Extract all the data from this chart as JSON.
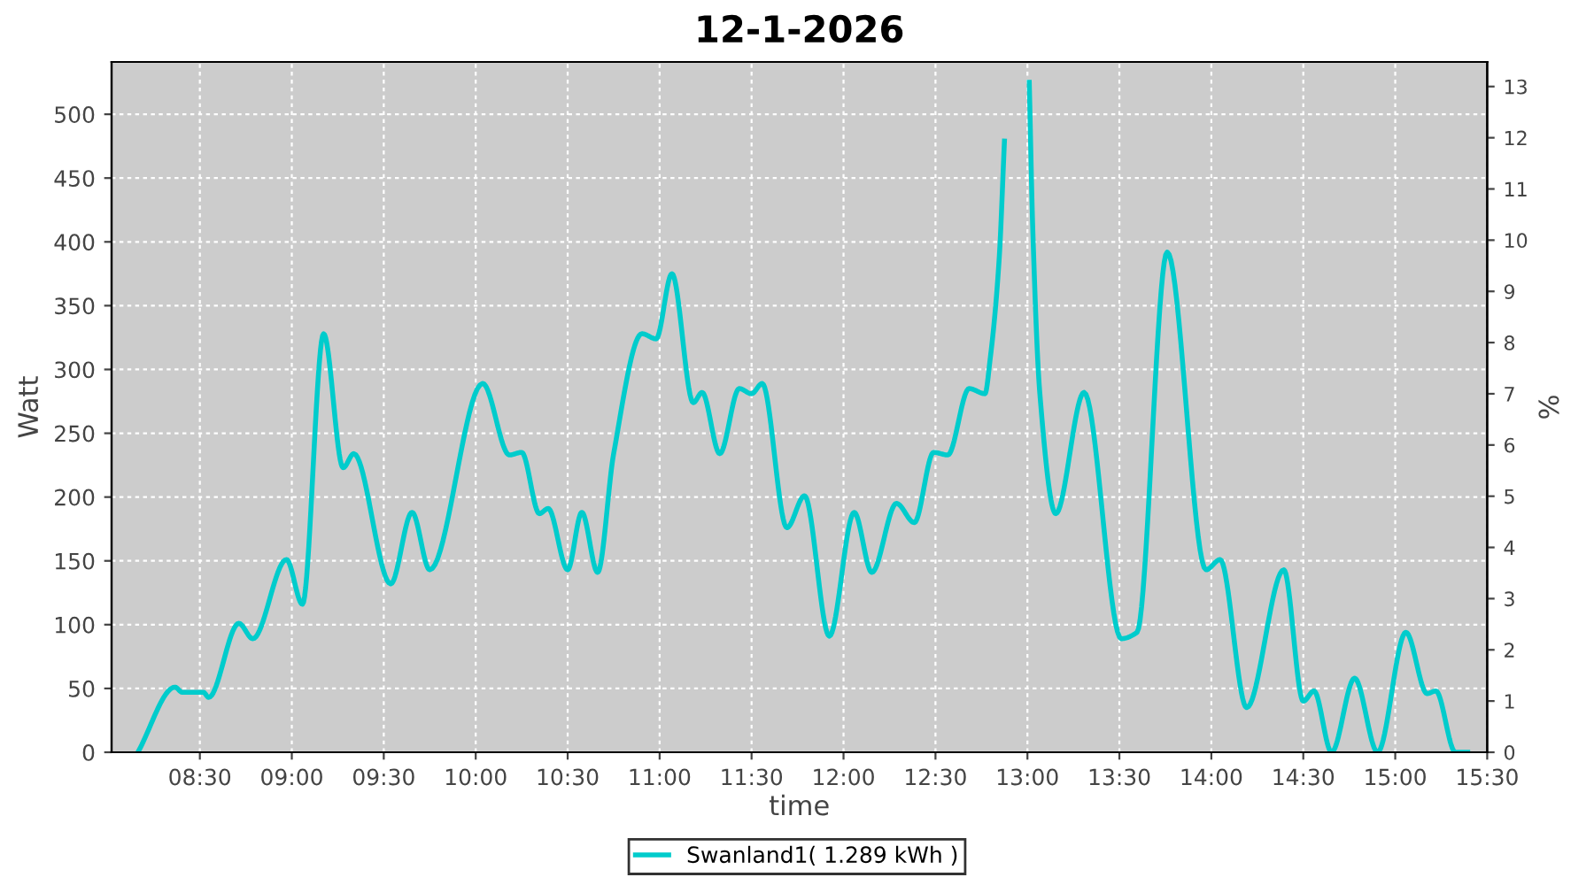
{
  "chart_data": {
    "type": "line",
    "title": "12-1-2026",
    "xlabel": "time",
    "ylabel": "Watt",
    "y2label": "%",
    "x": [
      8.163,
      8.365,
      8.404,
      8.519,
      8.548,
      8.712,
      8.788,
      8.971,
      9.058,
      9.173,
      9.279,
      9.337,
      9.538,
      9.654,
      9.75,
      10.038,
      10.183,
      10.25,
      10.346,
      10.394,
      10.5,
      10.577,
      10.663,
      10.75,
      10.904,
      10.981,
      11.067,
      11.183,
      11.231,
      11.327,
      11.433,
      11.5,
      11.558,
      11.692,
      11.788,
      11.923,
      12.058,
      12.154,
      12.288,
      12.385,
      12.49,
      12.567,
      12.683,
      12.769,
      12.798,
      12.846,
      12.875,
      12.894,
      12.971,
      13.01,
      13.029,
      13.067,
      13.154,
      13.308,
      13.51,
      13.596,
      13.76,
      13.971,
      14.048,
      14.192,
      14.394,
      14.5,
      14.558,
      14.654,
      14.779,
      14.904,
      15.058,
      15.173,
      15.221,
      15.327,
      15.394
    ],
    "series": [
      {
        "name": "Swanland1( 1.289 kWh )",
        "color": "#00cccc",
        "values": [
          0,
          51,
          47,
          47,
          43,
          101,
          89,
          151,
          116,
          328,
          223,
          234,
          132,
          188,
          143,
          289,
          233,
          235,
          187,
          191,
          143,
          188,
          141,
          234,
          328,
          324,
          375,
          274,
          282,
          234,
          285,
          281,
          289,
          176,
          201,
          91,
          188,
          141,
          195,
          180,
          235,
          233,
          285,
          281,
          309,
          386,
          479,
          null,
          null,
          525,
          410,
          282,
          187,
          282,
          89,
          94,
          392,
          143,
          151,
          35,
          143,
          40,
          48,
          0,
          58,
          0,
          94,
          46,
          48,
          0,
          0
        ]
      }
    ],
    "xlim": [
      8.02,
      15.5
    ],
    "ylim": [
      0,
      541
    ],
    "xticks": [
      {
        "value": 8.5,
        "label": "08:30"
      },
      {
        "value": 9,
        "label": "09:00"
      },
      {
        "value": 9.5,
        "label": "09:30"
      },
      {
        "value": 10,
        "label": "10:00"
      },
      {
        "value": 10.5,
        "label": "10:30"
      },
      {
        "value": 11,
        "label": "11:00"
      },
      {
        "value": 11.5,
        "label": "11:30"
      },
      {
        "value": 12,
        "label": "12:00"
      },
      {
        "value": 12.5,
        "label": "12:30"
      },
      {
        "value": 13,
        "label": "13:00"
      },
      {
        "value": 13.5,
        "label": "13:30"
      },
      {
        "value": 14,
        "label": "14:00"
      },
      {
        "value": 14.5,
        "label": "14:30"
      },
      {
        "value": 15,
        "label": "15:00"
      },
      {
        "value": 15.5,
        "label": "15:30"
      }
    ],
    "yticks": [
      0,
      50,
      100,
      150,
      200,
      250,
      300,
      350,
      400,
      450,
      500
    ],
    "y2lim": [
      0,
      13.48
    ],
    "y2ticks": [
      0,
      1,
      2,
      3,
      4,
      5,
      6,
      7,
      8,
      9,
      10,
      11,
      12,
      13
    ],
    "grid": true,
    "legend": "bottom",
    "line_style": "solid",
    "marker": "none"
  }
}
